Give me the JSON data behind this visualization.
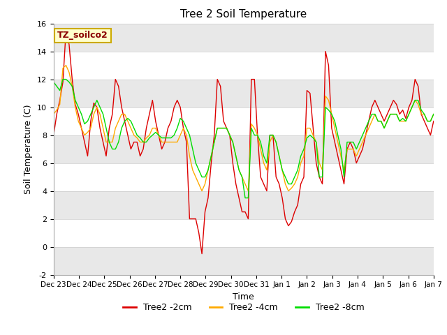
{
  "title": "Tree 2 Soil Temperature",
  "ylabel": "Soil Temperature (C)",
  "xlabel": "Time",
  "ylim": [
    -2,
    16
  ],
  "yticks": [
    -2,
    0,
    2,
    4,
    6,
    8,
    10,
    12,
    14,
    16
  ],
  "legend_title": "TZ_soilco2",
  "series": {
    "Tree2 -2cm": {
      "color": "#dd0000",
      "data": [
        8.0,
        9.5,
        10.5,
        11.8,
        15.5,
        14.5,
        12.0,
        10.2,
        9.5,
        8.5,
        7.5,
        6.5,
        9.0,
        10.3,
        10.0,
        8.5,
        7.5,
        6.5,
        8.5,
        9.5,
        12.0,
        11.5,
        10.0,
        9.0,
        8.0,
        7.0,
        7.5,
        7.5,
        6.5,
        7.0,
        8.5,
        9.5,
        10.5,
        9.0,
        8.0,
        7.0,
        7.5,
        8.5,
        9.0,
        10.0,
        10.5,
        10.0,
        8.5,
        7.5,
        2.0,
        2.0,
        2.0,
        1.0,
        -0.5,
        2.5,
        3.5,
        6.0,
        8.0,
        12.0,
        11.5,
        9.0,
        8.5,
        8.0,
        6.0,
        4.5,
        3.5,
        2.5,
        2.5,
        2.0,
        12.0,
        12.0,
        8.0,
        5.0,
        4.5,
        4.0,
        8.0,
        8.0,
        5.0,
        4.5,
        3.5,
        2.0,
        1.5,
        1.8,
        2.5,
        3.0,
        4.5,
        5.0,
        11.2,
        11.0,
        8.5,
        6.0,
        5.0,
        4.5,
        14.0,
        13.0,
        8.5,
        7.5,
        6.5,
        5.5,
        4.5,
        7.0,
        7.5,
        7.0,
        6.0,
        6.5,
        7.0,
        8.0,
        9.0,
        10.0,
        10.5,
        10.0,
        9.5,
        9.0,
        9.5,
        10.0,
        10.5,
        10.2,
        9.5,
        9.8,
        9.2,
        10.0,
        10.5,
        12.0,
        11.5,
        9.5,
        9.0,
        8.5,
        8.0,
        9.0
      ]
    },
    "Tree2 -4cm": {
      "color": "#ffaa00",
      "data": [
        9.5,
        9.8,
        10.2,
        12.8,
        13.0,
        12.5,
        11.5,
        10.0,
        9.0,
        8.5,
        8.0,
        8.2,
        8.5,
        9.5,
        10.0,
        9.5,
        8.5,
        7.5,
        7.5,
        7.5,
        8.5,
        9.0,
        9.5,
        9.5,
        9.0,
        8.5,
        8.0,
        7.8,
        7.5,
        7.5,
        7.8,
        8.0,
        8.5,
        8.5,
        8.0,
        7.5,
        7.5,
        7.5,
        7.5,
        7.5,
        7.5,
        8.0,
        8.5,
        8.0,
        6.5,
        5.5,
        5.0,
        4.5,
        4.0,
        4.5,
        5.5,
        6.5,
        7.5,
        8.5,
        8.5,
        8.5,
        8.5,
        8.0,
        7.5,
        6.5,
        5.5,
        5.0,
        4.5,
        4.0,
        8.8,
        8.5,
        8.0,
        7.0,
        6.0,
        5.5,
        7.5,
        8.0,
        7.5,
        6.5,
        5.5,
        4.5,
        4.0,
        4.2,
        4.5,
        5.0,
        6.0,
        6.5,
        8.5,
        8.5,
        8.0,
        7.5,
        6.0,
        5.5,
        10.8,
        10.5,
        9.5,
        8.5,
        7.5,
        6.5,
        5.5,
        7.0,
        7.0,
        7.0,
        6.5,
        7.0,
        7.5,
        8.0,
        8.5,
        9.0,
        9.5,
        9.0,
        9.0,
        8.5,
        9.0,
        9.5,
        9.5,
        9.5,
        9.0,
        9.0,
        9.0,
        9.5,
        10.0,
        10.5,
        10.2,
        9.5,
        9.5,
        9.0,
        9.0,
        9.5
      ]
    },
    "Tree2 -8cm": {
      "color": "#00dd00",
      "data": [
        11.8,
        11.5,
        11.2,
        12.0,
        12.0,
        11.8,
        11.5,
        10.5,
        10.0,
        9.5,
        8.8,
        9.0,
        9.5,
        10.0,
        10.5,
        10.0,
        9.5,
        8.5,
        7.5,
        7.0,
        7.0,
        7.5,
        8.5,
        9.0,
        9.2,
        9.0,
        8.5,
        8.0,
        7.8,
        7.5,
        7.5,
        7.8,
        8.0,
        8.2,
        8.0,
        7.8,
        7.8,
        7.8,
        7.8,
        8.0,
        8.5,
        9.2,
        9.0,
        8.5,
        8.0,
        7.0,
        6.0,
        5.5,
        5.0,
        5.0,
        5.5,
        6.5,
        7.5,
        8.5,
        8.5,
        8.5,
        8.5,
        8.0,
        7.5,
        6.5,
        5.5,
        5.0,
        3.5,
        3.5,
        8.5,
        8.0,
        8.0,
        7.5,
        6.5,
        6.0,
        8.0,
        8.0,
        7.5,
        6.5,
        5.5,
        5.0,
        4.5,
        4.5,
        5.0,
        5.5,
        6.5,
        7.0,
        7.8,
        8.0,
        7.8,
        7.5,
        5.0,
        5.0,
        10.0,
        9.8,
        9.5,
        9.0,
        8.0,
        7.0,
        5.0,
        7.5,
        7.5,
        7.5,
        7.0,
        7.5,
        8.0,
        8.5,
        9.0,
        9.5,
        9.5,
        9.0,
        9.0,
        8.5,
        9.0,
        9.5,
        9.5,
        9.5,
        9.0,
        9.2,
        9.0,
        9.5,
        10.0,
        10.5,
        10.5,
        9.8,
        9.5,
        9.0,
        9.0,
        9.5
      ]
    }
  },
  "xtick_labels": [
    "Dec 23",
    "Dec 24",
    "Dec 25",
    "Dec 26",
    "Dec 27",
    "Dec 28",
    "Dec 29",
    "Dec 30",
    "Dec 31",
    "Jan 1",
    "Jan 2",
    "Jan 3",
    "Jan 4",
    "Jan 5",
    "Jan 6",
    "Jan 7"
  ],
  "background_color": "#ffffff",
  "plot_bg_color": "#ffffff",
  "gray_band_color": "#e8e8e8",
  "gray_band_ranges": [
    [
      -2,
      0
    ],
    [
      2,
      4
    ],
    [
      6,
      8
    ],
    [
      10,
      12
    ],
    [
      14,
      16
    ]
  ]
}
